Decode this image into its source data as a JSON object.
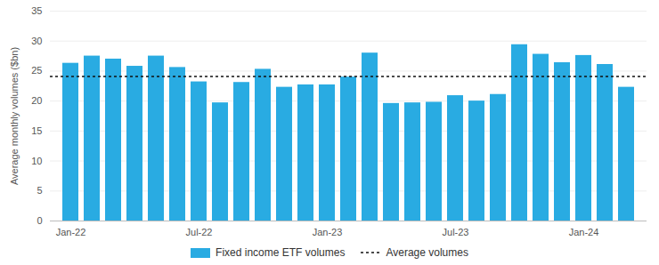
{
  "chart_data": {
    "type": "bar",
    "ylabel": "Average monthly volumes ($bn)",
    "categories": [
      "Jan-22",
      null,
      null,
      null,
      null,
      null,
      "Jul-22",
      null,
      null,
      null,
      null,
      null,
      "Jan-23",
      null,
      null,
      null,
      null,
      null,
      "Jul-23",
      null,
      null,
      null,
      null,
      null,
      "Jan-24",
      null,
      null
    ],
    "series": [
      {
        "name": "Fixed income ETF volumes",
        "color": "#29ABE2",
        "values": [
          26.3,
          27.5,
          27.0,
          25.8,
          27.5,
          25.6,
          23.2,
          19.7,
          23.1,
          25.3,
          22.3,
          22.7,
          22.7,
          24.0,
          28.0,
          19.6,
          19.7,
          19.8,
          20.9,
          20.0,
          21.1,
          29.4,
          27.8,
          26.4,
          27.6,
          26.1,
          22.3
        ]
      }
    ],
    "reference_lines": [
      {
        "name": "Average volumes",
        "value": 24.1,
        "color": "#111111",
        "line_style": "dashed"
      }
    ],
    "ylim": [
      0,
      35
    ],
    "yticks": [
      0,
      5,
      10,
      15,
      20,
      25,
      30,
      35
    ],
    "grid": true,
    "legend": "bottom"
  }
}
